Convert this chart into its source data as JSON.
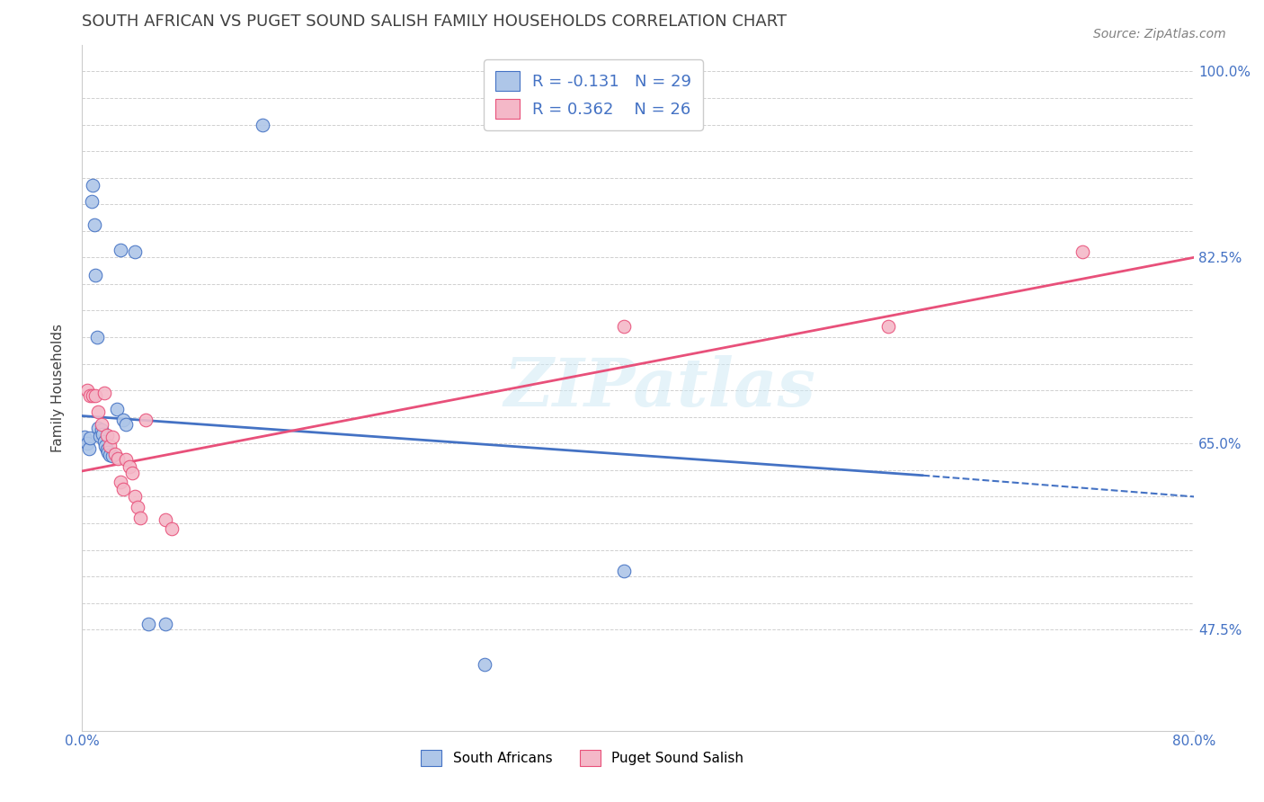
{
  "title": "SOUTH AFRICAN VS PUGET SOUND SALISH FAMILY HOUSEHOLDS CORRELATION CHART",
  "source": "Source: ZipAtlas.com",
  "ylabel": "Family Households",
  "xlim": [
    0.0,
    0.8
  ],
  "ylim": [
    0.38,
    1.025
  ],
  "ytick_labels_shown": [
    0.475,
    0.65,
    0.825,
    1.0
  ],
  "xticks": [
    0.0,
    0.1,
    0.2,
    0.3,
    0.4,
    0.5,
    0.6,
    0.7,
    0.8
  ],
  "xtick_labels_shown": [
    0.0,
    0.8
  ],
  "blue_scatter_x": [
    0.002,
    0.004,
    0.005,
    0.006,
    0.007,
    0.008,
    0.009,
    0.01,
    0.011,
    0.012,
    0.013,
    0.014,
    0.015,
    0.016,
    0.017,
    0.018,
    0.019,
    0.02,
    0.022,
    0.025,
    0.028,
    0.03,
    0.032,
    0.038,
    0.048,
    0.06,
    0.39,
    0.13,
    0.29
  ],
  "blue_scatter_y": [
    0.656,
    0.65,
    0.645,
    0.655,
    0.878,
    0.893,
    0.856,
    0.808,
    0.75,
    0.665,
    0.657,
    0.663,
    0.659,
    0.652,
    0.648,
    0.644,
    0.642,
    0.639,
    0.638,
    0.682,
    0.832,
    0.672,
    0.668,
    0.83,
    0.48,
    0.48,
    0.53,
    0.95,
    0.442
  ],
  "pink_scatter_x": [
    0.004,
    0.006,
    0.008,
    0.01,
    0.012,
    0.014,
    0.016,
    0.018,
    0.02,
    0.022,
    0.024,
    0.026,
    0.028,
    0.03,
    0.032,
    0.034,
    0.036,
    0.038,
    0.04,
    0.042,
    0.046,
    0.06,
    0.065,
    0.39,
    0.58,
    0.72
  ],
  "pink_scatter_y": [
    0.7,
    0.695,
    0.695,
    0.695,
    0.68,
    0.668,
    0.698,
    0.658,
    0.648,
    0.656,
    0.64,
    0.636,
    0.614,
    0.607,
    0.635,
    0.628,
    0.622,
    0.6,
    0.59,
    0.58,
    0.672,
    0.578,
    0.57,
    0.76,
    0.76,
    0.83
  ],
  "blue_R": -0.131,
  "blue_N": 29,
  "pink_R": 0.362,
  "pink_N": 26,
  "blue_color": "#aec6e8",
  "blue_line_color": "#4472c4",
  "pink_color": "#f4b8c8",
  "pink_line_color": "#e8507a",
  "title_color": "#404040",
  "source_color": "#808080",
  "axis_label_color": "#404040",
  "tick_color": "#4472c4",
  "legend_R_color": "#4472c4",
  "watermark": "ZIPatlas",
  "grid_color": "#d0d0d0",
  "grid_style": "--",
  "blue_line_x0": 0.0,
  "blue_line_y0": 0.676,
  "blue_line_x1": 0.605,
  "blue_line_y1": 0.62,
  "blue_line_x1_dash": 0.8,
  "blue_line_y1_dash": 0.6,
  "pink_line_x0": 0.0,
  "pink_line_y0": 0.624,
  "pink_line_x1": 0.8,
  "pink_line_y1": 0.825
}
